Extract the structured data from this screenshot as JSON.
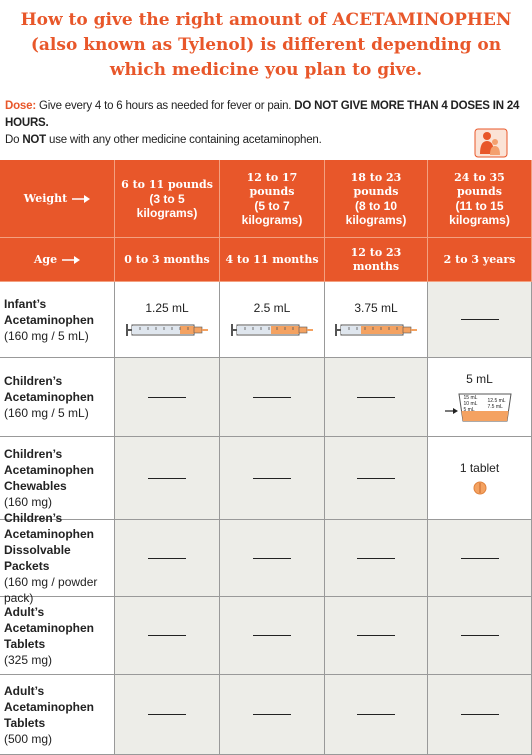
{
  "title": "How to give the right amount of ACETAMINOPHEN (also known as Tylenol) is different depending on which medicine you plan to give.",
  "dose": {
    "label": "Dose:",
    "text": "Give every 4 to 6 hours as needed for fever or pain.",
    "warning": "DO NOT GIVE MORE THAN 4 DOSES IN 24 HOURS.",
    "line2_start": "Do",
    "line2_bold": "NOT",
    "line2_end": "use with any other medicine containing acetaminophen."
  },
  "table": {
    "weight_label": "Weight",
    "age_label": "Age",
    "columns": [
      {
        "weight": "6 to 11 pounds",
        "weight_metric": "(3 to 5 kilograms)",
        "age": "0 to 3 months"
      },
      {
        "weight": "12 to 17 pounds",
        "weight_metric": "(5 to 7 kilograms)",
        "age": "4 to 11 months"
      },
      {
        "weight": "18 to 23 pounds",
        "weight_metric": "(8 to 10 kilograms)",
        "age": "12 to 23 months"
      },
      {
        "weight": "24 to 35 pounds",
        "weight_metric": "(11 to 15 kilograms)",
        "age": "2 to 3 years"
      }
    ],
    "rows": [
      {
        "name": "Infant’s Acetaminophen",
        "strength": "(160 mg / 5 mL)",
        "doses": [
          "1.25 mL",
          "2.5 mL",
          "3.75 mL",
          null
        ]
      },
      {
        "name": "Children’s Acetaminophen",
        "strength": "(160 mg / 5 mL)",
        "doses": [
          null,
          null,
          null,
          "5 mL"
        ],
        "cup_marks": [
          "15 mL",
          "10 mL",
          "5 mL",
          "12.5 mL",
          "7.5 mL"
        ]
      },
      {
        "name": "Children’s Acetaminophen Chewables",
        "strength": "(160 mg)",
        "doses": [
          null,
          null,
          null,
          "1 tablet"
        ]
      },
      {
        "name": "Children’s Acetaminophen Dissolvable Packets",
        "strength": "(160 mg / powder pack)",
        "doses": [
          null,
          null,
          null,
          null
        ]
      },
      {
        "name": "Adult’s Acetaminophen Tablets",
        "strength": "(325 mg)",
        "doses": [
          null,
          null,
          null,
          null
        ]
      },
      {
        "name": "Adult’s Acetaminophen Tablets",
        "strength": "(500 mg)",
        "doses": [
          null,
          null,
          null,
          null
        ]
      }
    ]
  }
}
